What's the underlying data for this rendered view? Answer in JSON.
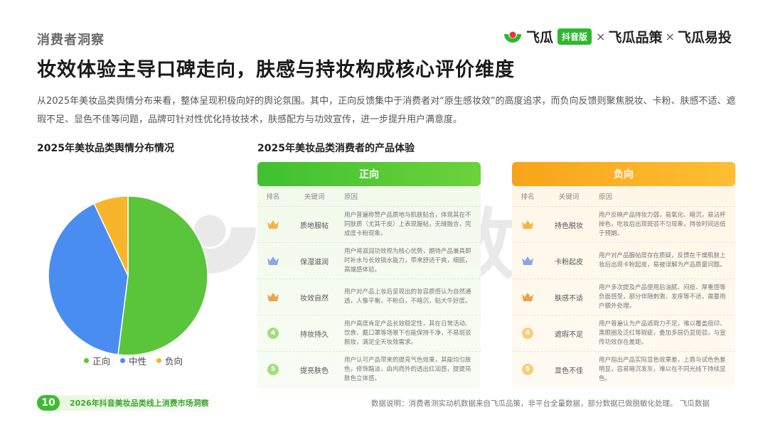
{
  "header": {
    "section_tag": "消费者洞察",
    "brand": {
      "part1": "飞瓜",
      "badge": "抖音版",
      "sep": "×",
      "part2": "飞瓜品策",
      "part3": "飞瓜易投"
    }
  },
  "title": "妆效体验主导口碑走向，肤感与持妆构成核心评价维度",
  "intro": "从2025年美妆品类舆情分布来看，整体呈现积极向好的舆论氛围。其中，正向反馈集中于消费者对“原生感妆效”的高度追求，而负向反馈则聚焦脱妆、卡粉、肤感不适、遮瑕不足、显色不佳等问题，品牌可针对性优化持妆技术，肤感配方与功效宣传，进一步提升用户满意度。",
  "pie_section": {
    "title": "2025年美妆品类舆情分布情况"
  },
  "experience_section": {
    "title": "2025年美妆品类消费者的产品体验",
    "columns": {
      "rank": "排名",
      "keyword": "关键词",
      "reason": "原因"
    },
    "positive": {
      "label": "正向",
      "rows": [
        {
          "rank": 1,
          "keyword": "质地服帖",
          "reason": "用户普遍称赞产品质地与肌肤贴合，体现其在不同肤质（尤其干皮）上表现服帖，无缝融合，完成度卡粉现象。"
        },
        {
          "rank": 2,
          "keyword": "保湿滋润",
          "reason": "用户将滋润功效视为核心优势，期待产品兼具即时补水与长效锁水能力，带来舒适干爽，细腻，高端感体验。"
        },
        {
          "rank": 3,
          "keyword": "妆效自然",
          "reason": "用户对产品上妆后呈现出的妆容质感认为自然通透，人像平衡，不粉白，不暗沉，贴大牛好度。"
        },
        {
          "rank": 4,
          "keyword": "持妆持久",
          "reason": "用户高度肯定产品长效稳定性，其在日常活动、饮食、戴口罩等场景下也能保持干净，不易斑驳脱妆，满足全天妆效需求。"
        },
        {
          "rank": 5,
          "keyword": "提亮肤色",
          "reason": "用户认可产品带来的提亮气色效果，其能均匀肤色，修饰黯淡，由内而外的透出红润感，提提亮肤色立体感。"
        }
      ]
    },
    "negative": {
      "label": "负向",
      "rows": [
        {
          "rank": 1,
          "keyword": "持色脱妆",
          "reason": "用户反映产品持妆力弱，易氧化、暗沉，易沾杯掉色，吃妆后出现斑驳不匀现象，持妆时间远低于预期。"
        },
        {
          "rank": 2,
          "keyword": "卡粉起皮",
          "reason": "用户对产品服帖度存在质疑，反馈在干燥肌肤上妆后出现卡粉起皮，易被误解为产品质量问题。"
        },
        {
          "rank": 3,
          "keyword": "肤感不适",
          "reason": "用户多次提及产品使用后油腻、闷痘、厚重感等负面感受，部分伴随刺激、发痒等不适，需要用户额外处理。"
        },
        {
          "rank": 4,
          "keyword": "遮瑕不足",
          "reason": "用户普遍认为产品遮瑕力不足，难以覆盖痘印、黑眼圈及泛红等瑕疵，叠加多层仍显斑驳，与宣传功效存在差距。"
        },
        {
          "rank": 5,
          "keyword": "显色不佳",
          "reason": "用户指出产品实际显色效果差，上唇与试色色差明显，容易暗沉发灰，难以在不同光线下持续显色。"
        }
      ]
    }
  },
  "chart_data": {
    "type": "pie",
    "categories": [
      "正向",
      "中性",
      "负向"
    ],
    "values": [
      52,
      41,
      7
    ],
    "legend_position": "bottom",
    "colors": [
      "#5ac53a",
      "#4a8df0",
      "#f7b52c"
    ]
  },
  "watermark": {
    "text": "飞瓜数据"
  },
  "footer": {
    "page_number": "10",
    "report_title": "2026年抖音美妆品类线上消费市场洞察",
    "footnote": "数据说明：消费者测实动机数据来自飞瓜品策，非平台全量数据，部分数据已做脱敏化处理。 飞瓜数据"
  }
}
